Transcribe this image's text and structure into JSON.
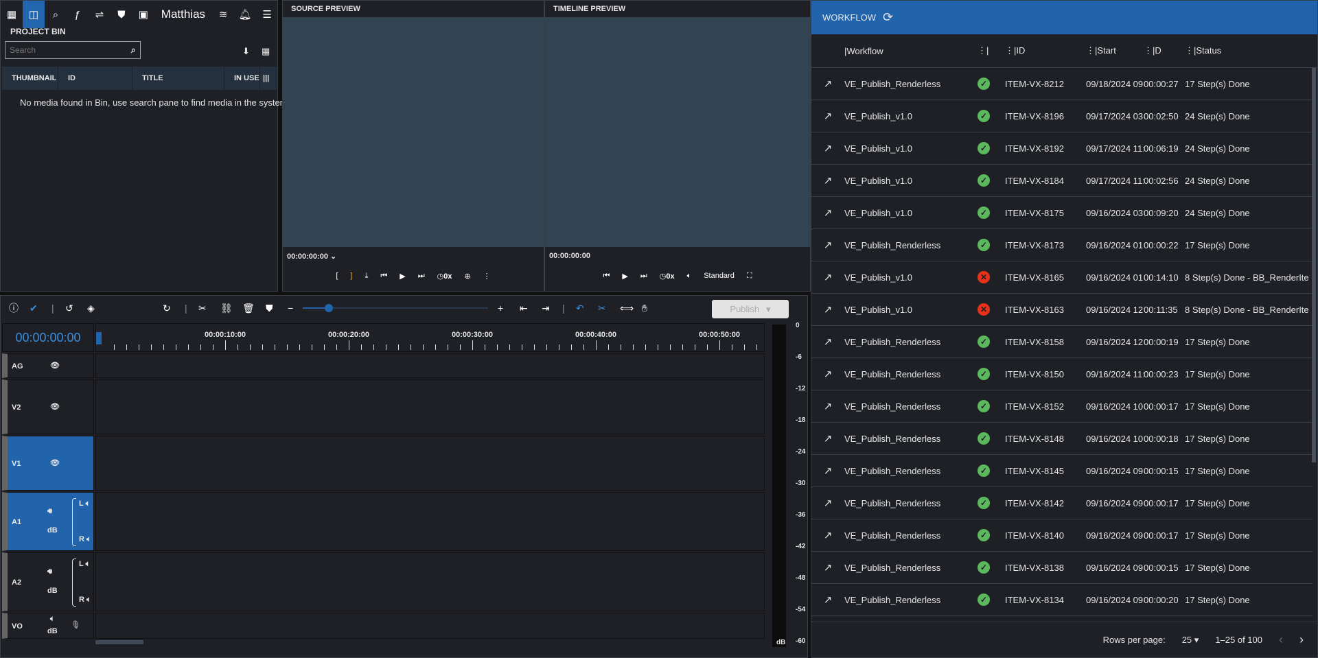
{
  "nav": {
    "user": "Matthias",
    "icons": [
      "apps-icon",
      "bin-icon",
      "search-icon",
      "effects-icon",
      "sliders-icon",
      "marker-icon",
      "export-icon",
      "wifi-icon",
      "bell-icon",
      "menu-icon"
    ]
  },
  "bin": {
    "title": "PROJECT BIN",
    "search_placeholder": "Search",
    "columns": [
      "THUMBNAIL",
      "ID",
      "TITLE",
      "IN USE"
    ],
    "empty_message": "No media found in Bin, use search pane to find media in the system"
  },
  "source_preview": {
    "title": "SOURCE PREVIEW",
    "timecode": "00:00:00:00",
    "speed": "0x"
  },
  "timeline_preview": {
    "title": "TIMELINE PREVIEW",
    "timecode": "00:00:00:00",
    "speed": "0x",
    "quality": "Standard"
  },
  "workflow": {
    "title": "WORKFLOW",
    "columns": [
      "Workflow",
      "",
      "ID",
      "Start",
      "D",
      "Status"
    ],
    "rows": [
      {
        "name": "VE_Publish_Renderless",
        "ok": true,
        "id": "ITEM-VX-8212",
        "start": "09/18/2024 09:",
        "dur": "00:00:27",
        "status": "17 Step(s) Done"
      },
      {
        "name": "VE_Publish_v1.0",
        "ok": true,
        "id": "ITEM-VX-8196",
        "start": "09/17/2024 03:",
        "dur": "00:02:50",
        "status": "24 Step(s) Done"
      },
      {
        "name": "VE_Publish_v1.0",
        "ok": true,
        "id": "ITEM-VX-8192",
        "start": "09/17/2024 11:",
        "dur": "00:06:19",
        "status": "24 Step(s) Done"
      },
      {
        "name": "VE_Publish_v1.0",
        "ok": true,
        "id": "ITEM-VX-8184",
        "start": "09/17/2024 11:",
        "dur": "00:02:56",
        "status": "24 Step(s) Done"
      },
      {
        "name": "VE_Publish_v1.0",
        "ok": true,
        "id": "ITEM-VX-8175",
        "start": "09/16/2024 03:",
        "dur": "00:09:20",
        "status": "24 Step(s) Done"
      },
      {
        "name": "VE_Publish_Renderless",
        "ok": true,
        "id": "ITEM-VX-8173",
        "start": "09/16/2024 01:",
        "dur": "00:00:22",
        "status": "17 Step(s) Done"
      },
      {
        "name": "VE_Publish_v1.0",
        "ok": false,
        "id": "ITEM-VX-8165",
        "start": "09/16/2024 01:",
        "dur": "00:14:10",
        "status": "8 Step(s) Done - BB_RenderIte"
      },
      {
        "name": "VE_Publish_v1.0",
        "ok": false,
        "id": "ITEM-VX-8163",
        "start": "09/16/2024 12:",
        "dur": "00:11:35",
        "status": "8 Step(s) Done - BB_RenderIte"
      },
      {
        "name": "VE_Publish_Renderless",
        "ok": true,
        "id": "ITEM-VX-8158",
        "start": "09/16/2024 12:",
        "dur": "00:00:19",
        "status": "17 Step(s) Done"
      },
      {
        "name": "VE_Publish_Renderless",
        "ok": true,
        "id": "ITEM-VX-8150",
        "start": "09/16/2024 11:",
        "dur": "00:00:23",
        "status": "17 Step(s) Done"
      },
      {
        "name": "VE_Publish_Renderless",
        "ok": true,
        "id": "ITEM-VX-8152",
        "start": "09/16/2024 10:",
        "dur": "00:00:17",
        "status": "17 Step(s) Done"
      },
      {
        "name": "VE_Publish_Renderless",
        "ok": true,
        "id": "ITEM-VX-8148",
        "start": "09/16/2024 10:",
        "dur": "00:00:18",
        "status": "17 Step(s) Done"
      },
      {
        "name": "VE_Publish_Renderless",
        "ok": true,
        "id": "ITEM-VX-8145",
        "start": "09/16/2024 09:",
        "dur": "00:00:15",
        "status": "17 Step(s) Done"
      },
      {
        "name": "VE_Publish_Renderless",
        "ok": true,
        "id": "ITEM-VX-8142",
        "start": "09/16/2024 09:",
        "dur": "00:00:17",
        "status": "17 Step(s) Done"
      },
      {
        "name": "VE_Publish_Renderless",
        "ok": true,
        "id": "ITEM-VX-8140",
        "start": "09/16/2024 09:",
        "dur": "00:00:17",
        "status": "17 Step(s) Done"
      },
      {
        "name": "VE_Publish_Renderless",
        "ok": true,
        "id": "ITEM-VX-8138",
        "start": "09/16/2024 09:",
        "dur": "00:00:15",
        "status": "17 Step(s) Done"
      },
      {
        "name": "VE_Publish_Renderless",
        "ok": true,
        "id": "ITEM-VX-8134",
        "start": "09/16/2024 09:",
        "dur": "00:00:20",
        "status": "17 Step(s) Done"
      }
    ],
    "rows_per_page_label": "Rows per page:",
    "rows_per_page": "25",
    "range": "1–25 of 100"
  },
  "timeline": {
    "timecode": "00:00:00:00",
    "publish_label": "Publish",
    "ruler_labels": [
      "00:00:10:00",
      "00:00:20:00",
      "00:00:30:00",
      "00:00:40:00",
      "00:00:50:00"
    ],
    "tracks": [
      {
        "name": "AG"
      },
      {
        "name": "V2"
      },
      {
        "name": "V1"
      },
      {
        "name": "A1",
        "db": "dB",
        "l": "L",
        "r": "R"
      },
      {
        "name": "A2",
        "db": "dB",
        "l": "L",
        "r": "R"
      },
      {
        "name": "VO",
        "db": "dB"
      }
    ],
    "meter": [
      "0",
      "-6",
      "-12",
      "-18",
      "-24",
      "-30",
      "-36",
      "-42",
      "-48",
      "-54",
      "-60",
      "dB"
    ]
  },
  "colors": {
    "accent": "#2264ab",
    "ok": "#5cb85c",
    "error": "#e8311a",
    "preview_bg": "#324452"
  }
}
